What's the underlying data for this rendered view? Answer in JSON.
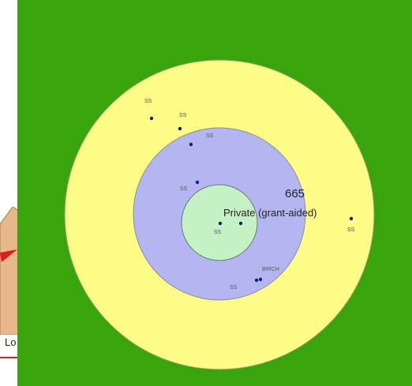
{
  "left_panel": {
    "partial_label": "Lo"
  },
  "map": {
    "colors": {
      "background": "#3aa40c",
      "outer_ring": "#fcfc86",
      "middle_ring": "#b4b6f2",
      "inner_ring": "#c4f2c4",
      "marker": "#1a1a7a",
      "accent_red": "#e01b1b"
    },
    "central_value": "665",
    "central_label": "Private (grant-aided)",
    "point_labels": {
      "p1": "SS",
      "p2": "SS",
      "p3": "SS",
      "p4": "SS",
      "p5": "SS",
      "p6": "SS",
      "p7": "SS",
      "p8": "BIRCH"
    }
  }
}
